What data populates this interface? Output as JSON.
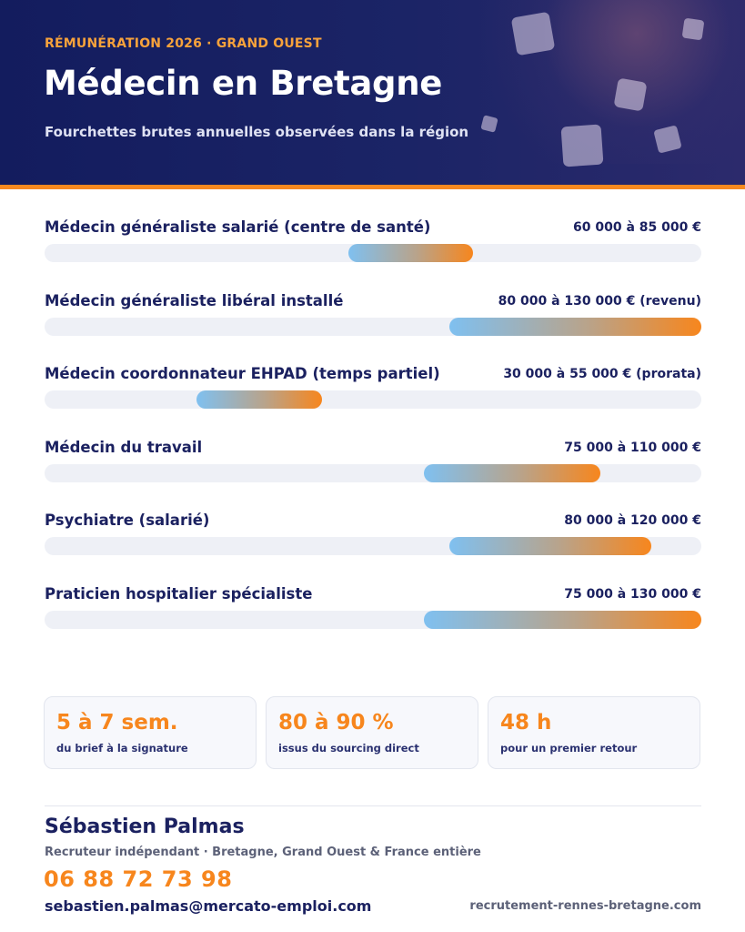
{
  "header": {
    "eyebrow": "RÉMUNÉRATION 2026  ·  GRAND OUEST",
    "title": "Médecin en Bretagne",
    "subtitle": "Fourchettes brutes annuelles observées dans la région"
  },
  "salaries": [
    {
      "label": "Médecin généraliste salarié (centre de santé)",
      "value": "60 000 à 85 000 €",
      "range_start": 0.462,
      "range_end": 0.653
    },
    {
      "label": "Médecin généraliste libéral installé",
      "value": "80 000 à 130 000 € (revenu)",
      "range_start": 0.616,
      "range_end": 1.0
    },
    {
      "label": "Médecin coordonnateur EHPAD (temps partiel)",
      "value": "30 000 à 55 000 € (prorata)",
      "range_start": 0.231,
      "range_end": 0.423
    },
    {
      "label": "Médecin du travail",
      "value": "75 000 à 110 000 €",
      "range_start": 0.577,
      "range_end": 0.846
    },
    {
      "label": "Psychiatre (salarié)",
      "value": "80 000 à 120 000 €",
      "range_start": 0.616,
      "range_end": 0.924
    },
    {
      "label": "Praticien hospitalier spécialiste",
      "value": "75 000 à 130 000 €",
      "range_start": 0.577,
      "range_end": 1.0
    }
  ],
  "stats": [
    {
      "big": "5 à 7 sem.",
      "small": "du brief à la signature"
    },
    {
      "big": "80 à 90 %",
      "small": "issus du sourcing direct"
    },
    {
      "big": "48 h",
      "small": "pour un premier retour"
    }
  ],
  "contact": {
    "name": "Sébastien Palmas",
    "role": "Recruteur indépendant · Bretagne, Grand Ouest & France entière",
    "phone": "06 88 72 73 98",
    "email": "sebastien.palmas@mercato-emploi.com",
    "website": "recrutement-rennes-bretagne.com"
  },
  "colors": {
    "header_bg": "#1b2466",
    "accent": "#f7861d",
    "bar_start": "#7fc0f0",
    "bar_end": "#f7861d",
    "text_dark": "#1b2160"
  }
}
